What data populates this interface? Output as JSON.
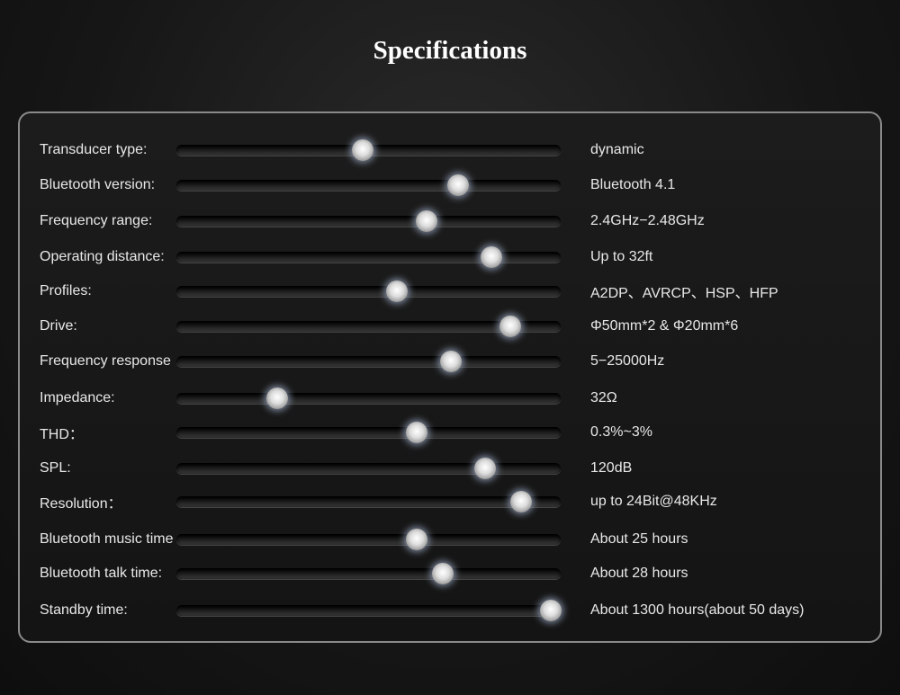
{
  "header": {
    "title": "Specifications"
  },
  "specs": [
    {
      "label": "Transducer type:",
      "value": "dynamic"
    },
    {
      "label": "Bluetooth version:",
      "value": "Bluetooth 4.1"
    },
    {
      "label": "Frequency range:",
      "value": "2.4GHz−2.48GHz"
    },
    {
      "label": "Operating distance:",
      "value": "Up to 32ft"
    },
    {
      "label": "Profiles:",
      "value": "A2DP、AVRCP、HSP、HFP"
    },
    {
      "label": "Drive:",
      "value": "Φ50mm*2 & Φ20mm*6"
    },
    {
      "label": "Frequency response",
      "value": "5−25000Hz"
    },
    {
      "label": "Impedance:",
      "value": "32Ω"
    },
    {
      "label": "THD：",
      "value": "0.3%~3%"
    },
    {
      "label": "SPL:",
      "value": "120dB"
    },
    {
      "label": "Resolution：",
      "value": "up to 24Bit@48KHz"
    },
    {
      "label": "Bluetooth music time",
      "value": "About 25 hours"
    },
    {
      "label": "Bluetooth talk time:",
      "value": "About 28 hours"
    },
    {
      "label": "Standby time:",
      "value": "About 1300 hours(about 50 days)"
    }
  ]
}
